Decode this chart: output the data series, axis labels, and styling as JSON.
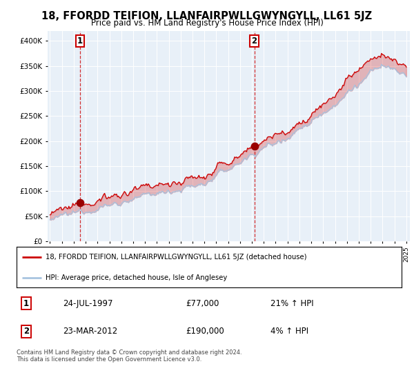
{
  "title": "18, FFORDD TEIFION, LLANFAIRPWLLGWYNGYLL, LL61 5JZ",
  "subtitle": "Price paid vs. HM Land Registry's House Price Index (HPI)",
  "legend_line1": "18, FFORDD TEIFION, LLANFAIRPWLLGWYNGYLL, LL61 5JZ (detached house)",
  "legend_line2": "HPI: Average price, detached house, Isle of Anglesey",
  "transaction1_date": "24-JUL-1997",
  "transaction1_price": 77000,
  "transaction1_hpi": "21% ↑ HPI",
  "transaction2_date": "23-MAR-2012",
  "transaction2_price": 190000,
  "transaction2_hpi": "4% ↑ HPI",
  "footer": "Contains HM Land Registry data © Crown copyright and database right 2024.\nThis data is licensed under the Open Government Licence v3.0.",
  "hpi_color": "#a8c4e0",
  "price_color": "#cc0000",
  "dot_color": "#990000",
  "ylim_min": 0,
  "ylim_max": 420000,
  "yticks": [
    0,
    50000,
    100000,
    150000,
    200000,
    250000,
    300000,
    350000,
    400000
  ],
  "plot_bg": "#e8f0f8",
  "grid_color": "white",
  "t1_year": 1997.54,
  "t1_price": 77000,
  "t2_year": 2012.21,
  "t2_price": 190000,
  "xmin": 1995.0,
  "xmax": 2025.3
}
